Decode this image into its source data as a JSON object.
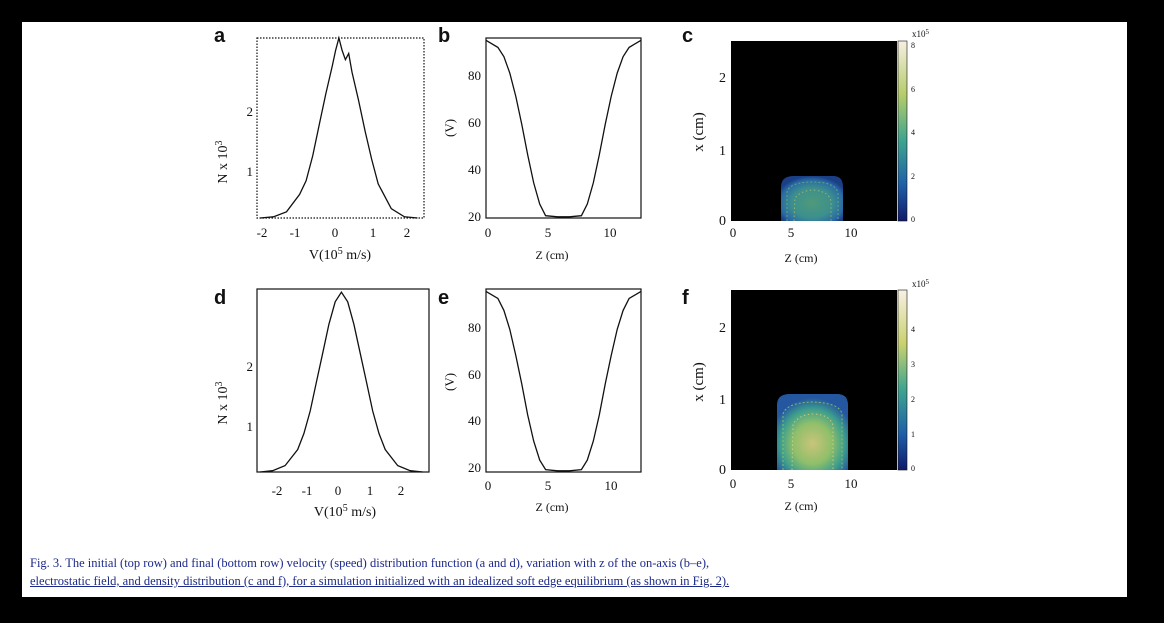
{
  "figure": {
    "caption_line1": "Fig. 3.  The initial (top row) and final (bottom row) velocity (speed) distribution function (a and d), variation with z of the on-axis (b–e),",
    "caption_line2": "electrostatic field, and density distribution (c and f), for a simulation initialized with an idealized soft edge equilibrium (as shown in Fig. 2)."
  },
  "chart_data": [
    {
      "panel": "a",
      "type": "line",
      "ylabel": "N x 10^3",
      "xlabel": "V(10^5 m/s)",
      "xlim": [
        -2.5,
        2.6
      ],
      "ylim": [
        0.4,
        3.3
      ],
      "xticks": [
        -2,
        -1,
        0,
        1,
        2
      ],
      "yticks": [
        1,
        2
      ],
      "x": [
        -2.4,
        -2.0,
        -1.6,
        -1.2,
        -1.0,
        -0.8,
        -0.6,
        -0.4,
        -0.2,
        -0.1,
        0.0,
        0.1,
        0.2,
        0.3,
        0.4,
        0.6,
        0.8,
        1.0,
        1.2,
        1.6,
        2.0,
        2.4
      ],
      "y": [
        0.4,
        0.42,
        0.5,
        0.78,
        1.0,
        1.4,
        1.9,
        2.4,
        2.85,
        3.1,
        3.3,
        3.1,
        2.95,
        3.05,
        2.75,
        2.3,
        1.8,
        1.35,
        0.95,
        0.55,
        0.42,
        0.4
      ]
    },
    {
      "panel": "b",
      "type": "line",
      "ylabel": "(V)",
      "xlabel": "Z (cm)",
      "xlim": [
        0,
        13
      ],
      "ylim": [
        18,
        95
      ],
      "xticks": [
        0,
        5,
        10
      ],
      "yticks": [
        20,
        40,
        60,
        80
      ],
      "x": [
        0,
        1,
        1.5,
        2,
        2.5,
        3,
        3.5,
        4,
        4.5,
        5,
        6,
        7,
        8,
        8.5,
        9,
        9.5,
        10,
        10.5,
        11,
        11.5,
        12,
        13
      ],
      "y": [
        94,
        91,
        87,
        80,
        70,
        58,
        45,
        33,
        24,
        19,
        18.5,
        18.5,
        19,
        24,
        33,
        45,
        58,
        70,
        80,
        87,
        91,
        94
      ]
    },
    {
      "panel": "c",
      "type": "heatmap",
      "ylabel": "x (cm)",
      "xlabel": "Z (cm)",
      "xlim": [
        0,
        14
      ],
      "ylim": [
        0,
        2.5
      ],
      "xticks": [
        0,
        5,
        10
      ],
      "yticks": [
        0,
        1,
        2
      ],
      "colorbar_label": "x10^5",
      "colorbar_range": [
        0,
        8
      ],
      "colorbar_ticks": [
        0,
        2,
        4,
        6,
        8
      ],
      "region": {
        "z": [
          4.3,
          8.3
        ],
        "x_max": 1.0
      }
    },
    {
      "panel": "d",
      "type": "line",
      "ylabel": "N x 10^3",
      "xlabel": "V(10^5 m/s)",
      "xlim": [
        -2.7,
        2.8
      ],
      "ylim": [
        0.15,
        3.0
      ],
      "xticks": [
        -2,
        -1,
        0,
        1,
        2
      ],
      "yticks": [
        1,
        2
      ],
      "x": [
        -2.6,
        -2.2,
        -1.8,
        -1.4,
        -1.2,
        -1.0,
        -0.8,
        -0.6,
        -0.4,
        -0.2,
        0.0,
        0.2,
        0.4,
        0.6,
        0.8,
        1.0,
        1.2,
        1.4,
        1.8,
        2.2,
        2.6
      ],
      "y": [
        0.15,
        0.17,
        0.25,
        0.5,
        0.75,
        1.1,
        1.55,
        2.0,
        2.45,
        2.8,
        2.95,
        2.8,
        2.45,
        2.0,
        1.55,
        1.1,
        0.75,
        0.5,
        0.25,
        0.17,
        0.15
      ]
    },
    {
      "panel": "e",
      "type": "line",
      "ylabel": "(V)",
      "xlabel": "Z (cm)",
      "xlim": [
        0,
        13
      ],
      "ylim": [
        18,
        95
      ],
      "xticks": [
        0,
        5,
        10
      ],
      "yticks": [
        20,
        40,
        60,
        80
      ],
      "x": [
        0,
        1,
        1.5,
        2,
        2.5,
        3,
        3.5,
        4,
        4.5,
        5,
        6,
        7,
        8,
        8.5,
        9,
        9.5,
        10,
        10.5,
        11,
        11.5,
        12,
        13
      ],
      "y": [
        94,
        91,
        86,
        78,
        67,
        55,
        42,
        31,
        23,
        19,
        18.5,
        18.5,
        19,
        23,
        31,
        42,
        55,
        67,
        78,
        86,
        91,
        94
      ]
    },
    {
      "panel": "f",
      "type": "heatmap",
      "ylabel": "x (cm)",
      "xlabel": "Z (cm)",
      "xlim": [
        0,
        14
      ],
      "ylim": [
        0,
        2.5
      ],
      "xticks": [
        0,
        5,
        10
      ],
      "yticks": [
        0,
        1,
        2
      ],
      "colorbar_label": "x10^5",
      "colorbar_range": [
        0,
        5
      ],
      "colorbar_ticks": [
        0,
        1,
        2,
        3,
        4
      ],
      "region": {
        "z": [
          4.0,
          9.0
        ],
        "x_max": 1.0
      }
    }
  ]
}
